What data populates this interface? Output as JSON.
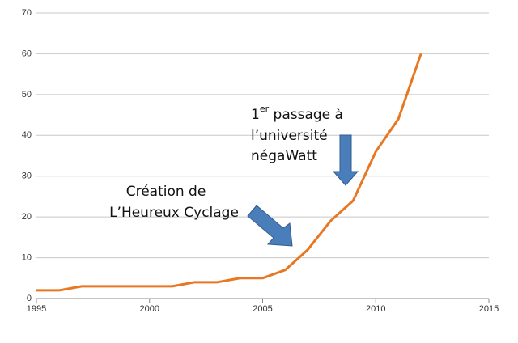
{
  "chart_data": {
    "type": "line",
    "x": [
      1995,
      1996,
      1997,
      1998,
      1999,
      2000,
      2001,
      2002,
      2003,
      2004,
      2005,
      2006,
      2007,
      2008,
      2009,
      2010,
      2011,
      2012
    ],
    "series": [
      {
        "color": "#e87722",
        "values": [
          2,
          2,
          3,
          3,
          3,
          3,
          3,
          4,
          4,
          5,
          5,
          7,
          12,
          19,
          24,
          36,
          44,
          60
        ]
      }
    ],
    "xlim": [
      1995,
      2015
    ],
    "xticks": [
      1995,
      2000,
      2005,
      2010,
      2015
    ],
    "ylim": [
      0,
      70
    ],
    "yticks": [
      0,
      10,
      20,
      30,
      40,
      50,
      60,
      70
    ],
    "grid": true,
    "annotations": [
      {
        "number": "1",
        "suffix": "er",
        "line1": " passage à",
        "line2": "l’université",
        "line3": "négaWatt"
      },
      {
        "line1": "Création de",
        "line2": "L’Heureux Cyclage"
      }
    ]
  }
}
